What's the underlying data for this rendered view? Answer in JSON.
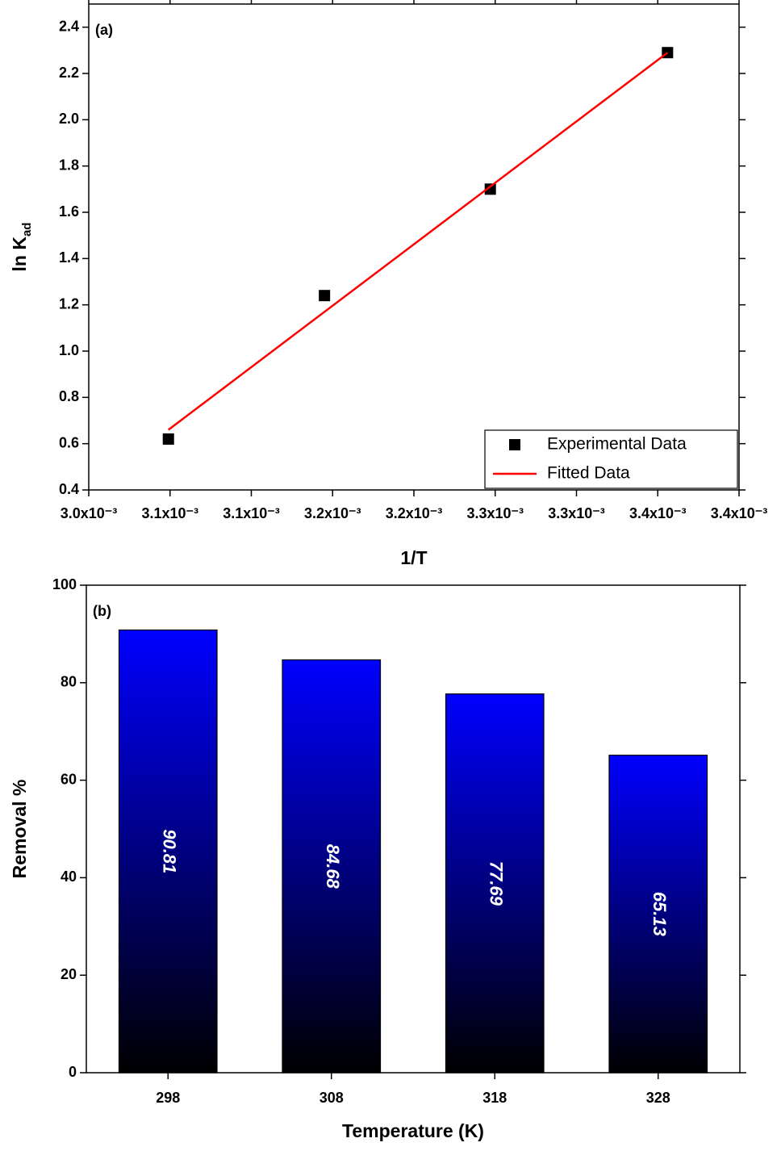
{
  "chart_data": [
    {
      "type": "scatter",
      "annotation": "(a)",
      "xlabel": "1/T",
      "ylabel": [
        "ln K",
        "ad"
      ],
      "xlim": [
        0.003,
        0.0034
      ],
      "xticks": [
        {
          "value": 0.003,
          "label": "3.0x10⁻³"
        },
        {
          "value": 0.00305,
          "label": "3.1x10⁻³"
        },
        {
          "value": 0.0031,
          "label": "3.1x10⁻³"
        },
        {
          "value": 0.00315,
          "label": "3.2x10⁻³"
        },
        {
          "value": 0.0032,
          "label": "3.2x10⁻³"
        },
        {
          "value": 0.00325,
          "label": "3.3x10⁻³"
        },
        {
          "value": 0.0033,
          "label": "3.3x10⁻³"
        },
        {
          "value": 0.00335,
          "label": "3.4x10⁻³"
        },
        {
          "value": 0.0034,
          "label": "3.4x10⁻³"
        }
      ],
      "ylim": [
        0.4,
        2.5
      ],
      "yticks": [
        0.4,
        0.6,
        0.8,
        {
          "value": 1.0,
          "label": "1.0"
        },
        1.2,
        1.4,
        1.6,
        1.8,
        {
          "value": 2.0,
          "label": "2.0"
        },
        2.2,
        2.4
      ],
      "legend": "lower right",
      "series": [
        {
          "name": "Experimental Data",
          "color": "#000000",
          "mode": "markers",
          "x": [
            0.003049,
            0.003145,
            0.003247,
            0.003356
          ],
          "values": [
            0.62,
            1.24,
            1.7,
            2.29
          ]
        },
        {
          "name": "Fitted Data",
          "color": "#ff0000",
          "mode": "line",
          "x": [
            0.003049,
            0.003356
          ],
          "values": [
            0.66,
            2.29
          ]
        }
      ]
    },
    {
      "type": "bar",
      "annotation": "(b)",
      "xlabel": "Temperature (K)",
      "ylabel": [
        "Removal %"
      ],
      "categories": [
        "298",
        "308",
        "318",
        "328"
      ],
      "values": [
        90.81,
        84.68,
        77.69,
        65.13
      ],
      "color": "#0000ff",
      "ylim": [
        0,
        100
      ],
      "yticks": [
        0,
        20,
        40,
        60,
        80,
        100
      ]
    }
  ]
}
